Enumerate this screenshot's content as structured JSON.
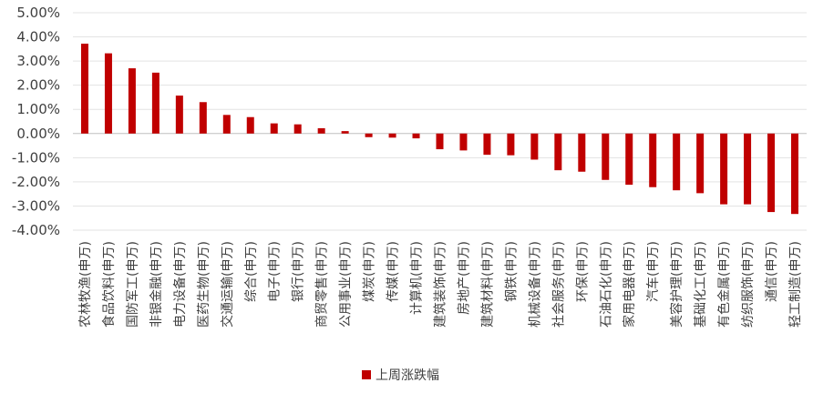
{
  "chart_data": {
    "type": "bar",
    "ylim": [
      -4,
      5
    ],
    "yticks": [
      5,
      4,
      3,
      2,
      1,
      0,
      -1,
      -2,
      -3,
      -4
    ],
    "ytick_labels": [
      "5.00%",
      "4.00%",
      "3.00%",
      "2.00%",
      "1.00%",
      "0.00%",
      "-1.00%",
      "-2.00%",
      "-3.00%",
      "-4.00%"
    ],
    "grid": true,
    "legend_position": "bottom",
    "bar_color": "#c00000",
    "categories": [
      "农林牧渔(申万)",
      "食品饮料(申万)",
      "国防军工(申万)",
      "非银金融(申万)",
      "电力设备(申万)",
      "医药生物(申万)",
      "交通运输(申万)",
      "综合(申万)",
      "电子(申万)",
      "银行(申万)",
      "商贸零售(申万)",
      "公用事业(申万)",
      "煤炭(申万)",
      "传媒(申万)",
      "计算机(申万)",
      "建筑装饰(申万)",
      "房地产(申万)",
      "建筑材料(申万)",
      "钢铁(申万)",
      "机械设备(申万)",
      "社会服务(申万)",
      "环保(申万)",
      "石油石化(申万)",
      "家用电器(申万)",
      "汽车(申万)",
      "美容护理(申万)",
      "基础化工(申万)",
      "有色金属(申万)",
      "纺织服饰(申万)",
      "通信(申万)",
      "轻工制造(申万)"
    ],
    "series": [
      {
        "name": "上周涨跌幅",
        "values": [
          3.72,
          3.32,
          2.7,
          2.52,
          1.57,
          1.3,
          0.77,
          0.68,
          0.42,
          0.38,
          0.22,
          0.1,
          -0.15,
          -0.17,
          -0.2,
          -0.65,
          -0.7,
          -0.88,
          -0.9,
          -1.08,
          -1.52,
          -1.58,
          -1.92,
          -2.12,
          -2.22,
          -2.35,
          -2.47,
          -2.93,
          -2.93,
          -3.25,
          -3.33
        ]
      }
    ]
  }
}
